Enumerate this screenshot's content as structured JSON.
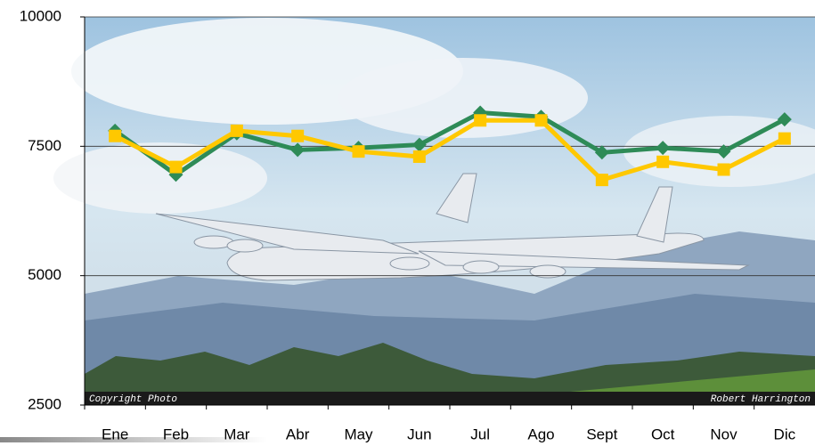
{
  "chart_data": {
    "type": "line",
    "categories": [
      "Ene",
      "Feb",
      "Mar",
      "Abr",
      "May",
      "Jun",
      "Jul",
      "Ago",
      "Sept",
      "Oct",
      "Nov",
      "Dic"
    ],
    "series": [
      {
        "color": "#2e8b57",
        "marker": "diamond",
        "values": [
          7800,
          6950,
          7750,
          7430,
          7470,
          7530,
          8150,
          8070,
          7380,
          7470,
          7400,
          8020
        ]
      },
      {
        "color": "#ffc800",
        "marker": "square",
        "values": [
          7700,
          7100,
          7800,
          7700,
          7400,
          7300,
          8000,
          8000,
          6850,
          7200,
          7050,
          7650
        ]
      }
    ],
    "ylim": [
      2500,
      10000
    ],
    "yticks": [
      2500,
      5000,
      7500,
      10000
    ],
    "grid": true,
    "photo_credit": {
      "left": "Copyright Photo",
      "right": "Robert Harrington"
    }
  }
}
